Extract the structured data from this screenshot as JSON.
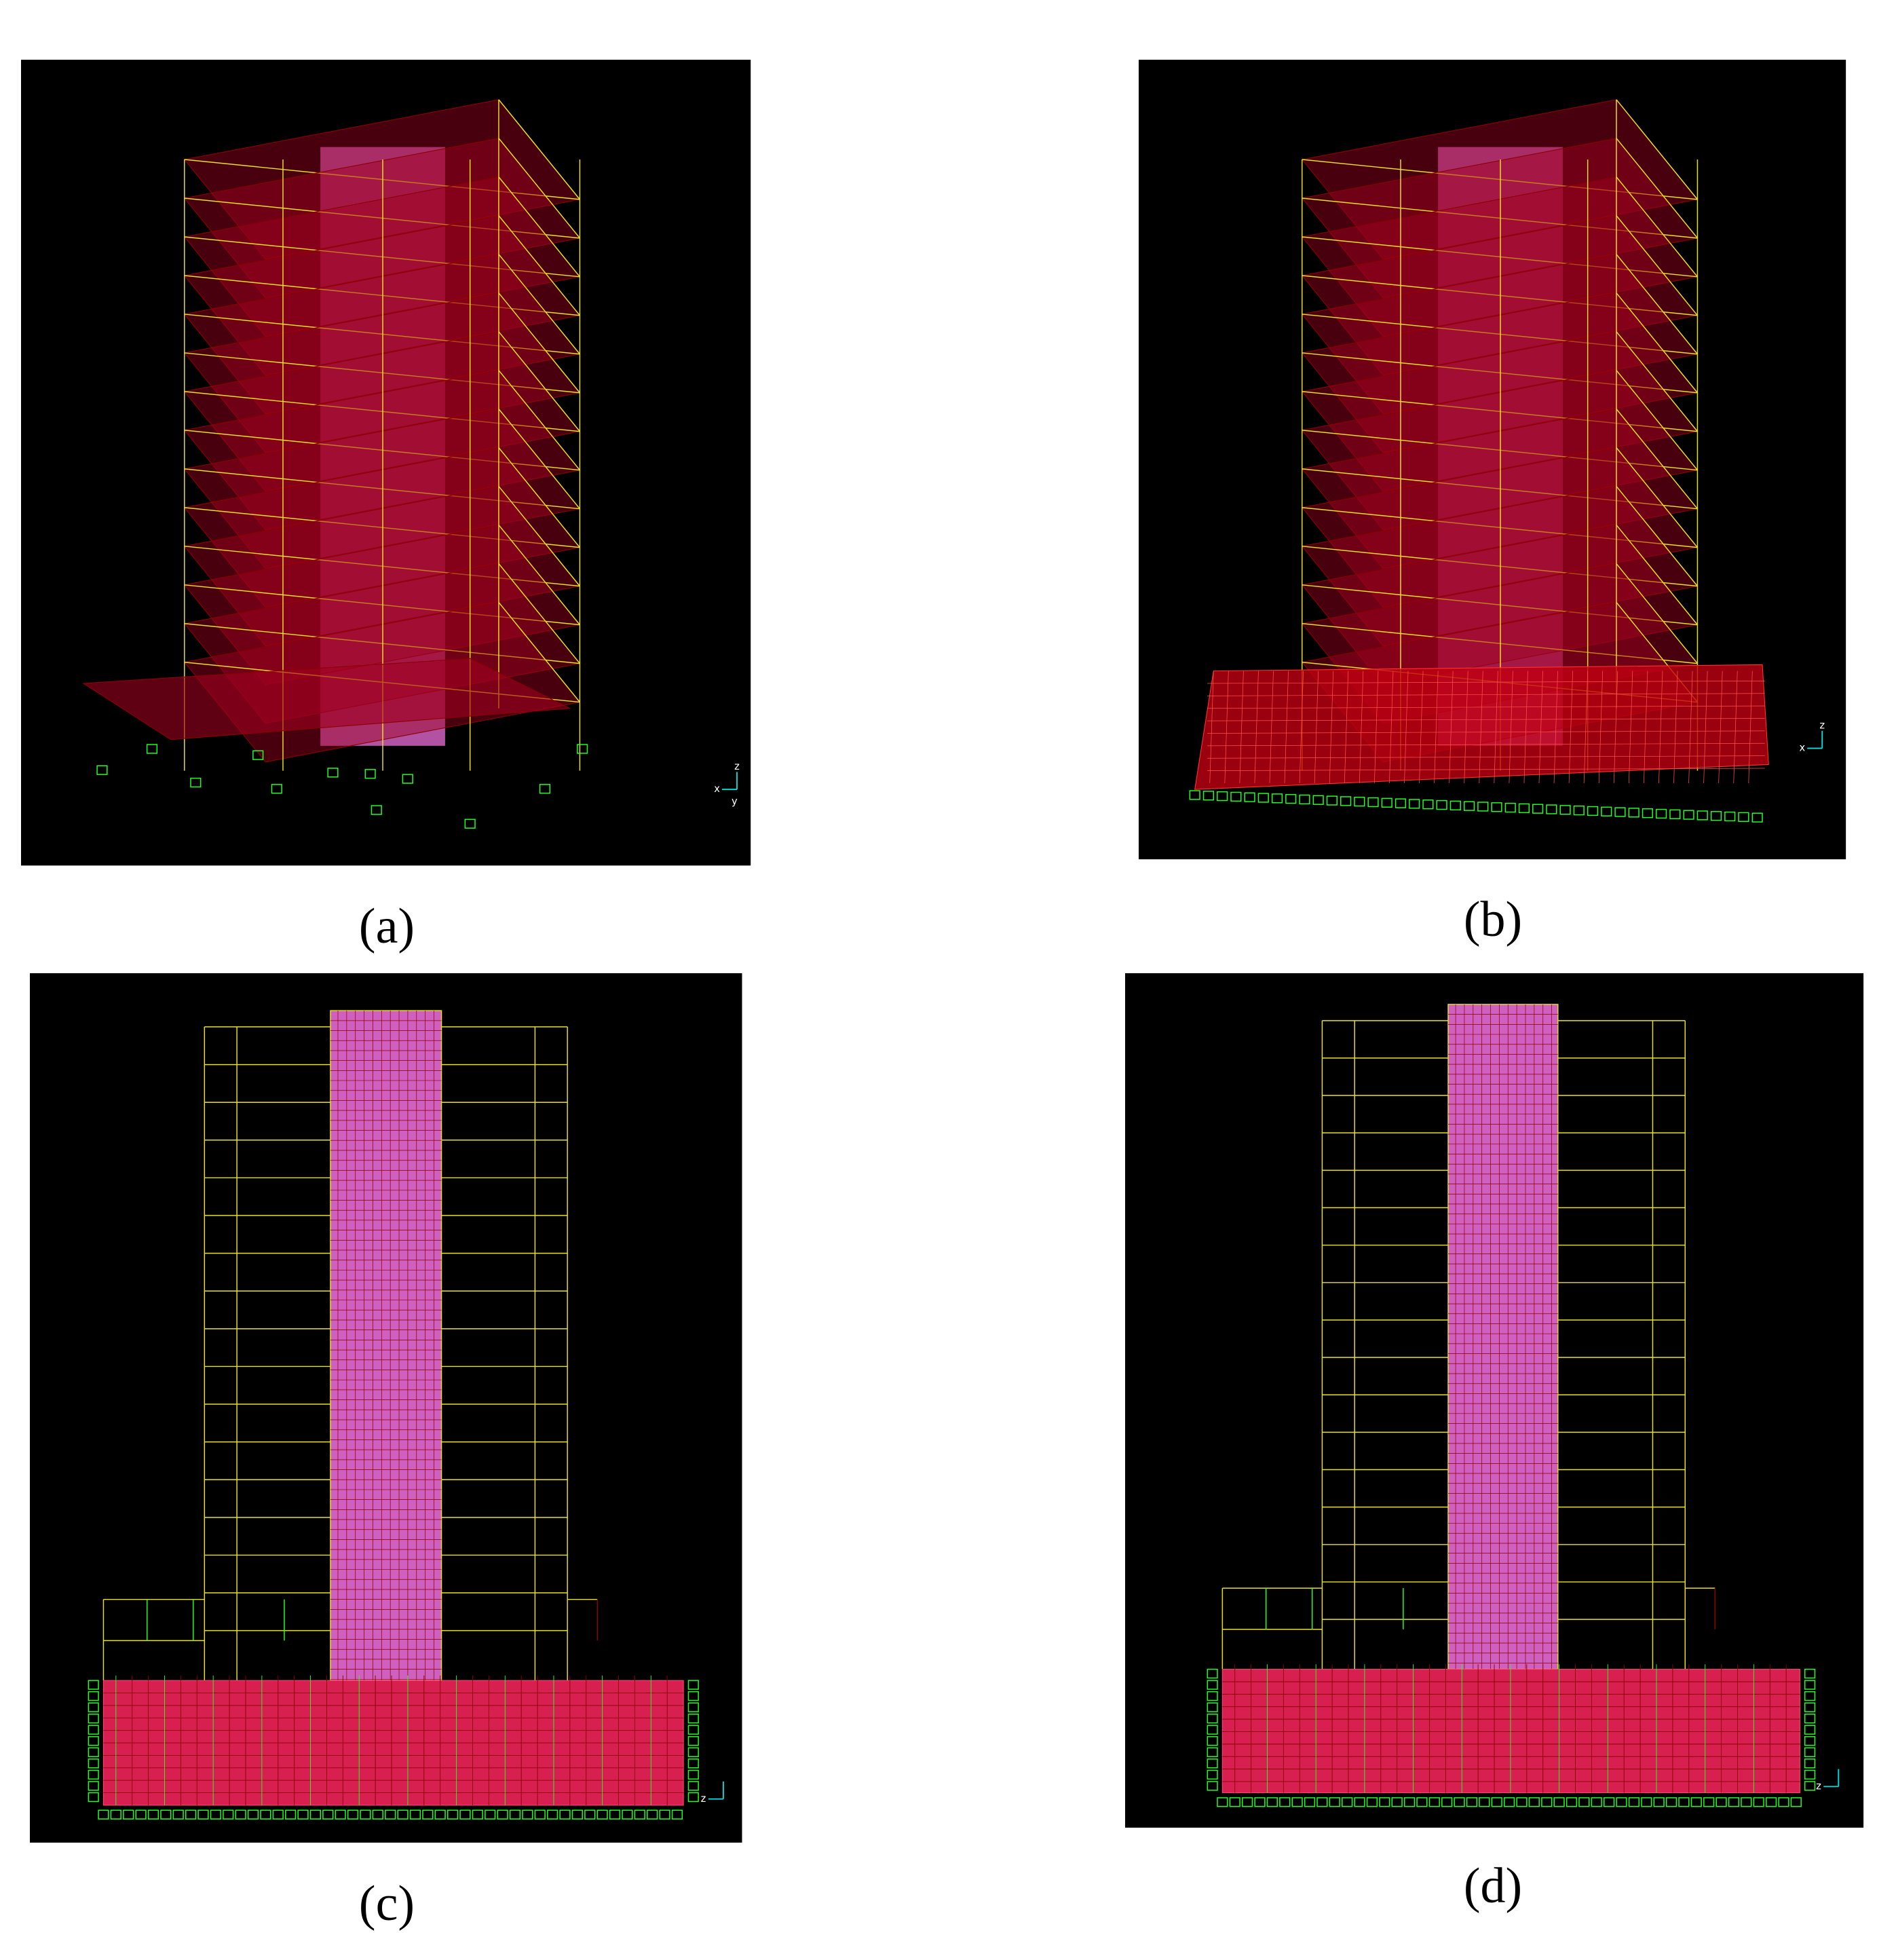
{
  "panels": [
    {
      "label": "(a)",
      "axis_labels": [
        "x",
        "z",
        "y"
      ]
    },
    {
      "label": "(b)",
      "axis_labels": [
        "x",
        "z"
      ]
    },
    {
      "label": "(c)",
      "axis_labels": [
        "z"
      ]
    },
    {
      "label": "(d)",
      "axis_labels": [
        "z"
      ]
    }
  ]
}
